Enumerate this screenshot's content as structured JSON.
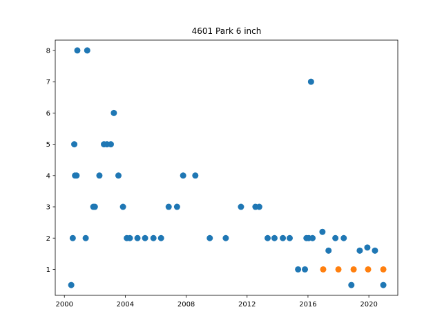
{
  "chart_data": {
    "type": "scatter",
    "title": "4601 Park 6 inch",
    "xlabel": "",
    "ylabel": "",
    "xlim": [
      1999.4,
      2021.9
    ],
    "ylim": [
      0.17,
      8.33
    ],
    "x_ticks": [
      {
        "value": 2000,
        "label": "2000"
      },
      {
        "value": 2004,
        "label": "2004"
      },
      {
        "value": 2008,
        "label": "2008"
      },
      {
        "value": 2012,
        "label": "2012"
      },
      {
        "value": 2016,
        "label": "2016"
      },
      {
        "value": 2020,
        "label": "2020"
      }
    ],
    "y_ticks": [
      {
        "value": 1,
        "label": "1"
      },
      {
        "value": 2,
        "label": "2"
      },
      {
        "value": 3,
        "label": "3"
      },
      {
        "value": 4,
        "label": "4"
      },
      {
        "value": 5,
        "label": "5"
      },
      {
        "value": 6,
        "label": "6"
      },
      {
        "value": 7,
        "label": "7"
      },
      {
        "value": 8,
        "label": "8"
      }
    ],
    "grid": false,
    "legend": "none",
    "series": [
      {
        "color": "#1f77b4",
        "points": [
          [
            2000.45,
            0.5
          ],
          [
            2000.55,
            2
          ],
          [
            2000.65,
            5
          ],
          [
            2000.7,
            4
          ],
          [
            2000.8,
            4
          ],
          [
            2000.85,
            8
          ],
          [
            2001.4,
            2
          ],
          [
            2001.5,
            8
          ],
          [
            2001.9,
            3
          ],
          [
            2002.0,
            3
          ],
          [
            2002.3,
            4
          ],
          [
            2002.6,
            5
          ],
          [
            2002.8,
            5
          ],
          [
            2003.05,
            5
          ],
          [
            2003.25,
            6
          ],
          [
            2003.55,
            4
          ],
          [
            2003.85,
            3
          ],
          [
            2004.1,
            2
          ],
          [
            2004.3,
            2
          ],
          [
            2004.8,
            2
          ],
          [
            2005.3,
            2
          ],
          [
            2005.85,
            2
          ],
          [
            2006.35,
            2
          ],
          [
            2006.85,
            3
          ],
          [
            2007.4,
            3
          ],
          [
            2007.8,
            4
          ],
          [
            2008.6,
            4
          ],
          [
            2009.55,
            2
          ],
          [
            2010.6,
            2
          ],
          [
            2011.6,
            3
          ],
          [
            2012.55,
            3
          ],
          [
            2012.8,
            3
          ],
          [
            2013.35,
            2
          ],
          [
            2013.8,
            2
          ],
          [
            2014.35,
            2
          ],
          [
            2014.8,
            2
          ],
          [
            2015.35,
            1
          ],
          [
            2015.8,
            1
          ],
          [
            2015.9,
            2
          ],
          [
            2016.05,
            2
          ],
          [
            2016.2,
            7
          ],
          [
            2016.3,
            2
          ],
          [
            2016.95,
            2.2
          ],
          [
            2017.35,
            1.6
          ],
          [
            2017.8,
            2
          ],
          [
            2018.35,
            2
          ],
          [
            2018.85,
            0.5
          ],
          [
            2019.4,
            1.6
          ],
          [
            2019.9,
            1.7
          ],
          [
            2020.4,
            1.6
          ],
          [
            2020.95,
            0.5
          ]
        ]
      },
      {
        "color": "#ff7f0e",
        "points": [
          [
            2017.0,
            1
          ],
          [
            2018.0,
            1
          ],
          [
            2019.0,
            1
          ],
          [
            2019.95,
            1
          ],
          [
            2020.95,
            1
          ]
        ]
      }
    ]
  }
}
